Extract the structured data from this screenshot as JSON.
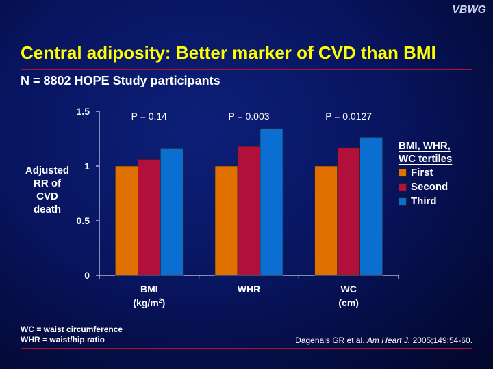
{
  "brand": "VBWG",
  "title": "Central adiposity: Better marker of CVD than BMI",
  "subtitle": "N = 8802 HOPE Study participants",
  "chart_data": {
    "type": "bar",
    "ylabel_lines": [
      "Adjusted",
      "RR of",
      "CVD",
      "death"
    ],
    "ylim": [
      0,
      1.5
    ],
    "yticks": [
      {
        "value": 0,
        "label": "0"
      },
      {
        "value": 0.5,
        "label": "0.5"
      },
      {
        "value": 1,
        "label": "1"
      },
      {
        "value": 1.5,
        "label": "1.5"
      }
    ],
    "categories": [
      {
        "name": "BMI",
        "unit": "(kg/m",
        "unit_sup": "2",
        "unit_close": ")",
        "pvalue": "P = 0.14"
      },
      {
        "name": "WHR",
        "unit": "",
        "unit_sup": "",
        "unit_close": "",
        "pvalue": "P = 0.003"
      },
      {
        "name": "WC",
        "unit": "(cm)",
        "unit_sup": "",
        "unit_close": "",
        "pvalue": "P = 0.0127"
      }
    ],
    "legend_title_lines": [
      "BMI, WHR,",
      "WC tertiles"
    ],
    "legend_placement": "right",
    "grid": false,
    "series": [
      {
        "name": "First",
        "color": "#e07000",
        "values": [
          1.0,
          1.0,
          1.0
        ]
      },
      {
        "name": "Second",
        "color": "#b0103a",
        "values": [
          1.06,
          1.18,
          1.17
        ]
      },
      {
        "name": "Third",
        "color": "#0a6fd0",
        "values": [
          1.16,
          1.34,
          1.26
        ]
      }
    ]
  },
  "notes": [
    "WC = waist circumference",
    "WHR = waist/hip ratio"
  ],
  "citation": {
    "authors": "Dagenais GR et al. ",
    "journal": "Am Heart J.",
    "details": " 2005;149:54-60."
  }
}
